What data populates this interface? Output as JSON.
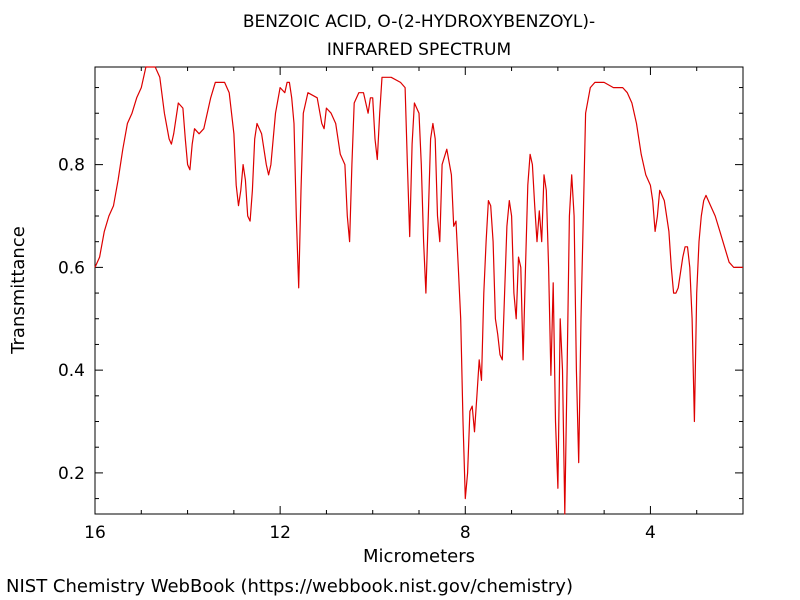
{
  "chart_data": {
    "type": "line",
    "title": [
      "BENZOIC ACID, O-(2-HYDROXYBENZOYL)-",
      "INFRARED SPECTRUM"
    ],
    "xlabel": "Micrometers",
    "ylabel": "Transmittance",
    "xlim": [
      16,
      2
    ],
    "ylim": [
      0.12,
      0.99
    ],
    "x_ticks": [
      16,
      12,
      8,
      4
    ],
    "y_ticks": [
      0.2,
      0.4,
      0.6,
      0.8
    ],
    "grid": false,
    "series": [
      {
        "color": "#dd0000",
        "points": [
          [
            16.0,
            0.6
          ],
          [
            15.9,
            0.62
          ],
          [
            15.8,
            0.67
          ],
          [
            15.7,
            0.7
          ],
          [
            15.6,
            0.72
          ],
          [
            15.5,
            0.77
          ],
          [
            15.4,
            0.83
          ],
          [
            15.3,
            0.88
          ],
          [
            15.2,
            0.9
          ],
          [
            15.1,
            0.93
          ],
          [
            15.0,
            0.95
          ],
          [
            14.9,
            0.99
          ],
          [
            14.8,
            0.99
          ],
          [
            14.7,
            0.99
          ],
          [
            14.6,
            0.97
          ],
          [
            14.5,
            0.9
          ],
          [
            14.4,
            0.85
          ],
          [
            14.35,
            0.84
          ],
          [
            14.3,
            0.86
          ],
          [
            14.2,
            0.92
          ],
          [
            14.1,
            0.91
          ],
          [
            14.05,
            0.85
          ],
          [
            14.0,
            0.8
          ],
          [
            13.95,
            0.79
          ],
          [
            13.9,
            0.84
          ],
          [
            13.85,
            0.87
          ],
          [
            13.75,
            0.86
          ],
          [
            13.65,
            0.87
          ],
          [
            13.5,
            0.93
          ],
          [
            13.4,
            0.96
          ],
          [
            13.2,
            0.96
          ],
          [
            13.1,
            0.94
          ],
          [
            13.0,
            0.86
          ],
          [
            12.95,
            0.76
          ],
          [
            12.9,
            0.72
          ],
          [
            12.85,
            0.75
          ],
          [
            12.8,
            0.8
          ],
          [
            12.75,
            0.77
          ],
          [
            12.7,
            0.7
          ],
          [
            12.65,
            0.69
          ],
          [
            12.6,
            0.75
          ],
          [
            12.55,
            0.85
          ],
          [
            12.5,
            0.88
          ],
          [
            12.4,
            0.86
          ],
          [
            12.3,
            0.8
          ],
          [
            12.25,
            0.78
          ],
          [
            12.2,
            0.8
          ],
          [
            12.1,
            0.9
          ],
          [
            12.0,
            0.95
          ],
          [
            11.9,
            0.94
          ],
          [
            11.85,
            0.96
          ],
          [
            11.8,
            0.96
          ],
          [
            11.75,
            0.93
          ],
          [
            11.7,
            0.88
          ],
          [
            11.65,
            0.7
          ],
          [
            11.6,
            0.56
          ],
          [
            11.55,
            0.75
          ],
          [
            11.5,
            0.9
          ],
          [
            11.4,
            0.94
          ],
          [
            11.2,
            0.93
          ],
          [
            11.1,
            0.88
          ],
          [
            11.05,
            0.87
          ],
          [
            11.0,
            0.91
          ],
          [
            10.9,
            0.9
          ],
          [
            10.8,
            0.88
          ],
          [
            10.7,
            0.82
          ],
          [
            10.6,
            0.8
          ],
          [
            10.55,
            0.7
          ],
          [
            10.5,
            0.65
          ],
          [
            10.45,
            0.8
          ],
          [
            10.4,
            0.92
          ],
          [
            10.3,
            0.94
          ],
          [
            10.2,
            0.94
          ],
          [
            10.15,
            0.92
          ],
          [
            10.1,
            0.9
          ],
          [
            10.05,
            0.93
          ],
          [
            10.0,
            0.93
          ],
          [
            9.95,
            0.85
          ],
          [
            9.9,
            0.81
          ],
          [
            9.85,
            0.9
          ],
          [
            9.8,
            0.97
          ],
          [
            9.6,
            0.97
          ],
          [
            9.4,
            0.96
          ],
          [
            9.3,
            0.95
          ],
          [
            9.25,
            0.8
          ],
          [
            9.2,
            0.66
          ],
          [
            9.15,
            0.84
          ],
          [
            9.1,
            0.92
          ],
          [
            9.0,
            0.9
          ],
          [
            8.95,
            0.8
          ],
          [
            8.9,
            0.65
          ],
          [
            8.85,
            0.55
          ],
          [
            8.8,
            0.7
          ],
          [
            8.75,
            0.85
          ],
          [
            8.7,
            0.88
          ],
          [
            8.65,
            0.85
          ],
          [
            8.6,
            0.7
          ],
          [
            8.55,
            0.65
          ],
          [
            8.5,
            0.8
          ],
          [
            8.4,
            0.83
          ],
          [
            8.3,
            0.78
          ],
          [
            8.25,
            0.68
          ],
          [
            8.2,
            0.69
          ],
          [
            8.15,
            0.6
          ],
          [
            8.1,
            0.5
          ],
          [
            8.05,
            0.3
          ],
          [
            8.0,
            0.15
          ],
          [
            7.95,
            0.2
          ],
          [
            7.9,
            0.32
          ],
          [
            7.85,
            0.33
          ],
          [
            7.8,
            0.28
          ],
          [
            7.75,
            0.35
          ],
          [
            7.7,
            0.42
          ],
          [
            7.65,
            0.38
          ],
          [
            7.6,
            0.55
          ],
          [
            7.55,
            0.65
          ],
          [
            7.5,
            0.73
          ],
          [
            7.45,
            0.72
          ],
          [
            7.4,
            0.65
          ],
          [
            7.35,
            0.5
          ],
          [
            7.3,
            0.47
          ],
          [
            7.25,
            0.43
          ],
          [
            7.2,
            0.42
          ],
          [
            7.15,
            0.55
          ],
          [
            7.1,
            0.68
          ],
          [
            7.05,
            0.73
          ],
          [
            7.0,
            0.7
          ],
          [
            6.95,
            0.55
          ],
          [
            6.9,
            0.5
          ],
          [
            6.85,
            0.62
          ],
          [
            6.8,
            0.6
          ],
          [
            6.75,
            0.42
          ],
          [
            6.7,
            0.6
          ],
          [
            6.65,
            0.76
          ],
          [
            6.6,
            0.82
          ],
          [
            6.55,
            0.8
          ],
          [
            6.5,
            0.72
          ],
          [
            6.45,
            0.65
          ],
          [
            6.4,
            0.71
          ],
          [
            6.35,
            0.65
          ],
          [
            6.3,
            0.78
          ],
          [
            6.25,
            0.75
          ],
          [
            6.2,
            0.6
          ],
          [
            6.15,
            0.39
          ],
          [
            6.1,
            0.57
          ],
          [
            6.05,
            0.3
          ],
          [
            6.0,
            0.17
          ],
          [
            5.95,
            0.5
          ],
          [
            5.9,
            0.4
          ],
          [
            5.85,
            0.12
          ],
          [
            5.8,
            0.4
          ],
          [
            5.75,
            0.7
          ],
          [
            5.7,
            0.78
          ],
          [
            5.65,
            0.7
          ],
          [
            5.6,
            0.4
          ],
          [
            5.55,
            0.22
          ],
          [
            5.5,
            0.5
          ],
          [
            5.45,
            0.7
          ],
          [
            5.4,
            0.9
          ],
          [
            5.3,
            0.95
          ],
          [
            5.2,
            0.96
          ],
          [
            5.0,
            0.96
          ],
          [
            4.8,
            0.95
          ],
          [
            4.6,
            0.95
          ],
          [
            4.5,
            0.94
          ],
          [
            4.4,
            0.92
          ],
          [
            4.3,
            0.88
          ],
          [
            4.2,
            0.82
          ],
          [
            4.1,
            0.78
          ],
          [
            4.0,
            0.76
          ],
          [
            3.95,
            0.73
          ],
          [
            3.9,
            0.67
          ],
          [
            3.85,
            0.7
          ],
          [
            3.8,
            0.75
          ],
          [
            3.7,
            0.73
          ],
          [
            3.6,
            0.67
          ],
          [
            3.55,
            0.6
          ],
          [
            3.5,
            0.55
          ],
          [
            3.45,
            0.55
          ],
          [
            3.4,
            0.56
          ],
          [
            3.35,
            0.59
          ],
          [
            3.3,
            0.62
          ],
          [
            3.25,
            0.64
          ],
          [
            3.2,
            0.64
          ],
          [
            3.15,
            0.6
          ],
          [
            3.1,
            0.5
          ],
          [
            3.05,
            0.3
          ],
          [
            3.0,
            0.55
          ],
          [
            2.95,
            0.65
          ],
          [
            2.9,
            0.7
          ],
          [
            2.85,
            0.73
          ],
          [
            2.8,
            0.74
          ],
          [
            2.7,
            0.72
          ],
          [
            2.6,
            0.7
          ],
          [
            2.5,
            0.67
          ],
          [
            2.4,
            0.64
          ],
          [
            2.3,
            0.61
          ],
          [
            2.2,
            0.6
          ],
          [
            2.0,
            0.6
          ]
        ]
      }
    ]
  },
  "credit": "NIST Chemistry WebBook (https://webbook.nist.gov/chemistry)"
}
